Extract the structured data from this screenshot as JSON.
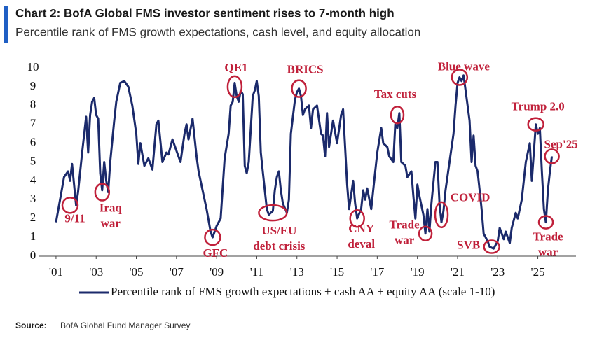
{
  "chart_data": {
    "type": "line",
    "title": "Chart 2: BofA Global FMS investor sentiment rises to 7-month high",
    "subtitle": "Percentile rank of FMS growth expectations, cash level, and equity allocation",
    "source_label": "Source:",
    "source": "BofA Global Fund Manager Survey",
    "xlim": [
      2000.13,
      2026.9
    ],
    "ylim": [
      0,
      10
    ],
    "yticks": [
      0,
      1,
      2,
      3,
      4,
      5,
      6,
      7,
      8,
      9,
      10
    ],
    "xticks": [
      {
        "value": 2001,
        "label": "'01"
      },
      {
        "value": 2003,
        "label": "'03"
      },
      {
        "value": 2005,
        "label": "'05"
      },
      {
        "value": 2007,
        "label": "'07"
      },
      {
        "value": 2009,
        "label": "'09"
      },
      {
        "value": 2011,
        "label": "'11"
      },
      {
        "value": 2013,
        "label": "'13"
      },
      {
        "value": 2015,
        "label": "'15"
      },
      {
        "value": 2017,
        "label": "'17"
      },
      {
        "value": 2019,
        "label": "'19"
      },
      {
        "value": 2021,
        "label": "'21"
      },
      {
        "value": 2023,
        "label": "'23"
      },
      {
        "value": 2025,
        "label": "'25"
      }
    ],
    "legend": "bottom",
    "series": [
      {
        "name": "Percentile rank of FMS growth expectations + cash AA + equity AA (scale 1-10)",
        "color": "#1b2a6b",
        "x": [
          2001.0,
          2001.2,
          2001.4,
          2001.6,
          2001.7,
          2001.8,
          2001.9,
          2002.0,
          2002.1,
          2002.3,
          2002.5,
          2002.6,
          2002.7,
          2002.8,
          2002.9,
          2003.0,
          2003.1,
          2003.2,
          2003.3,
          2003.4,
          2003.5,
          2003.6,
          2003.7,
          2003.9,
          2004.0,
          2004.2,
          2004.4,
          2004.6,
          2004.8,
          2005.0,
          2005.1,
          2005.2,
          2005.4,
          2005.6,
          2005.8,
          2006.0,
          2006.1,
          2006.3,
          2006.5,
          2006.6,
          2006.8,
          2007.0,
          2007.2,
          2007.4,
          2007.5,
          2007.6,
          2007.8,
          2008.0,
          2008.1,
          2008.3,
          2008.5,
          2008.7,
          2008.8,
          2009.0,
          2009.2,
          2009.4,
          2009.6,
          2009.7,
          2009.8,
          2009.9,
          2010.0,
          2010.1,
          2010.2,
          2010.3,
          2010.4,
          2010.5,
          2010.6,
          2010.8,
          2010.9,
          2011.0,
          2011.1,
          2011.2,
          2011.3,
          2011.5,
          2011.6,
          2011.8,
          2011.9,
          2012.0,
          2012.1,
          2012.2,
          2012.3,
          2012.5,
          2012.6,
          2012.7,
          2012.9,
          2013.0,
          2013.1,
          2013.2,
          2013.3,
          2013.4,
          2013.6,
          2013.7,
          2013.8,
          2014.0,
          2014.2,
          2014.3,
          2014.4,
          2014.5,
          2014.6,
          2014.8,
          2015.0,
          2015.2,
          2015.3,
          2015.5,
          2015.6,
          2015.8,
          2015.9,
          2016.0,
          2016.2,
          2016.3,
          2016.4,
          2016.5,
          2016.7,
          2016.8,
          2017.0,
          2017.2,
          2017.3,
          2017.5,
          2017.6,
          2017.8,
          2017.9,
          2018.0,
          2018.1,
          2018.2,
          2018.4,
          2018.5,
          2018.7,
          2018.8,
          2018.9,
          2019.0,
          2019.1,
          2019.3,
          2019.4,
          2019.5,
          2019.6,
          2019.7,
          2019.9,
          2020.0,
          2020.1,
          2020.2,
          2020.3,
          2020.4,
          2020.6,
          2020.8,
          2020.9,
          2021.0,
          2021.1,
          2021.2,
          2021.3,
          2021.5,
          2021.6,
          2021.7,
          2021.8,
          2021.9,
          2022.0,
          2022.1,
          2022.2,
          2022.3,
          2022.5,
          2022.6,
          2022.8,
          2023.0,
          2023.1,
          2023.3,
          2023.4,
          2023.6,
          2023.7,
          2023.9,
          2024.0,
          2024.2,
          2024.4,
          2024.6,
          2024.7,
          2024.8,
          2024.9,
          2025.0,
          2025.1,
          2025.2,
          2025.3,
          2025.4,
          2025.5,
          2025.6,
          2025.7
        ],
        "values": [
          1.8,
          3.0,
          4.2,
          4.5,
          4.0,
          4.9,
          3.8,
          2.7,
          3.4,
          5.5,
          7.4,
          5.5,
          7.5,
          8.2,
          8.4,
          7.5,
          7.3,
          4.4,
          3.5,
          5.0,
          4.0,
          3.4,
          5.0,
          7.2,
          8.2,
          9.2,
          9.3,
          9.0,
          8.0,
          6.5,
          4.9,
          6.0,
          4.8,
          5.2,
          4.6,
          7.0,
          7.2,
          5.0,
          5.5,
          5.4,
          6.2,
          5.6,
          5.0,
          6.5,
          7.0,
          6.2,
          7.3,
          5.3,
          4.5,
          3.5,
          2.5,
          1.3,
          1.0,
          1.6,
          2.0,
          5.2,
          6.5,
          8.0,
          8.2,
          9.2,
          8.5,
          8.2,
          8.8,
          8.6,
          4.8,
          4.4,
          5.0,
          8.5,
          8.8,
          9.3,
          8.5,
          5.5,
          4.5,
          2.5,
          2.2,
          2.4,
          3.5,
          4.2,
          4.5,
          3.5,
          2.8,
          2.3,
          3.0,
          6.5,
          8.3,
          8.7,
          8.9,
          8.5,
          7.5,
          7.8,
          8.0,
          6.8,
          7.8,
          8.0,
          6.5,
          6.4,
          5.3,
          7.6,
          5.8,
          7.2,
          6.0,
          7.5,
          7.8,
          3.8,
          2.5,
          4.0,
          2.8,
          2.0,
          2.5,
          3.5,
          3.0,
          3.6,
          2.5,
          3.5,
          5.5,
          6.8,
          6.0,
          5.8,
          5.3,
          5.0,
          7.0,
          6.8,
          7.6,
          5.0,
          4.8,
          4.2,
          4.5,
          3.2,
          2.0,
          3.8,
          3.2,
          2.2,
          1.2,
          2.5,
          1.3,
          2.8,
          5.0,
          5.0,
          2.8,
          1.8,
          2.4,
          3.5,
          5.0,
          6.5,
          8.0,
          9.2,
          9.5,
          9.3,
          9.6,
          8.0,
          7.2,
          5.0,
          6.4,
          4.8,
          4.5,
          3.5,
          2.5,
          1.2,
          0.8,
          0.5,
          0.4,
          0.8,
          1.5,
          0.9,
          1.3,
          0.7,
          1.5,
          2.3,
          2.0,
          3.0,
          5.0,
          6.0,
          4.0,
          5.5,
          7.0,
          6.5,
          6.8,
          4.5,
          2.5,
          1.8,
          3.5,
          4.5,
          5.3
        ]
      }
    ],
    "annotation_color": "#c0203a",
    "annotations": [
      {
        "label": [
          "9/11"
        ],
        "x": 2001.7,
        "y": 2.7
      },
      {
        "label": [
          "Iraq",
          "war"
        ],
        "x": 2003.3,
        "y": 3.4
      },
      {
        "label": [
          "GFC"
        ],
        "x": 2008.8,
        "y": 1.0
      },
      {
        "label": [
          "QE1"
        ],
        "x": 2009.9,
        "y": 9.0
      },
      {
        "label": [
          "US/EU",
          "debt crisis"
        ],
        "x": 2011.8,
        "y": 2.3
      },
      {
        "label": [
          "BRICS"
        ],
        "x": 2013.1,
        "y": 8.9
      },
      {
        "label": [
          "CNY",
          "deval"
        ],
        "x": 2016.0,
        "y": 2.0
      },
      {
        "label": [
          "Tax cuts"
        ],
        "x": 2018.0,
        "y": 7.5
      },
      {
        "label": [
          "Trade",
          "war"
        ],
        "x": 2019.4,
        "y": 1.2
      },
      {
        "label": [
          "COVID"
        ],
        "x": 2020.2,
        "y": 2.2
      },
      {
        "label": [
          "Blue wave"
        ],
        "x": 2021.1,
        "y": 9.5
      },
      {
        "label": [
          "SVB"
        ],
        "x": 2022.7,
        "y": 0.5
      },
      {
        "label": [
          "Trump 2.0"
        ],
        "x": 2024.9,
        "y": 7.0
      },
      {
        "label": [
          "Sep'25"
        ],
        "x": 2025.7,
        "y": 5.3
      },
      {
        "label": [
          "Trade",
          "war"
        ],
        "x": 2025.4,
        "y": 1.8
      }
    ]
  }
}
